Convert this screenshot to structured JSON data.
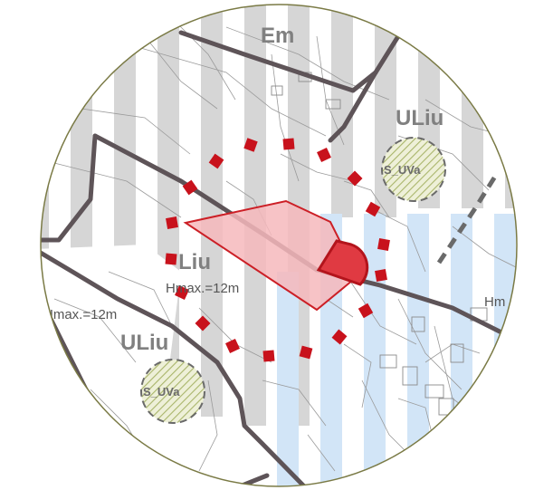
{
  "zones": {
    "em": "Em",
    "uliu_top": "ULiu",
    "liu": "Liu",
    "uliu_bottom": "ULiu",
    "hm": "Hm"
  },
  "height_limits": {
    "center": "Hmax.=12m",
    "left": "Hmax.=12m"
  },
  "badges": {
    "top_right": "S_UVa",
    "bottom_left": "S_UVa"
  },
  "colors": {
    "zone_grey_stripe": "#d4d4d4",
    "zone_blue_stripe": "#cfe3f7",
    "site_fill": "#f6b8bc",
    "site_outline": "#cc1f26",
    "buffer_marker": "#c8121c",
    "main_road": "#5c5257",
    "boundary_circle": "#7a7a45",
    "green_hatch": "#a9b56a"
  }
}
